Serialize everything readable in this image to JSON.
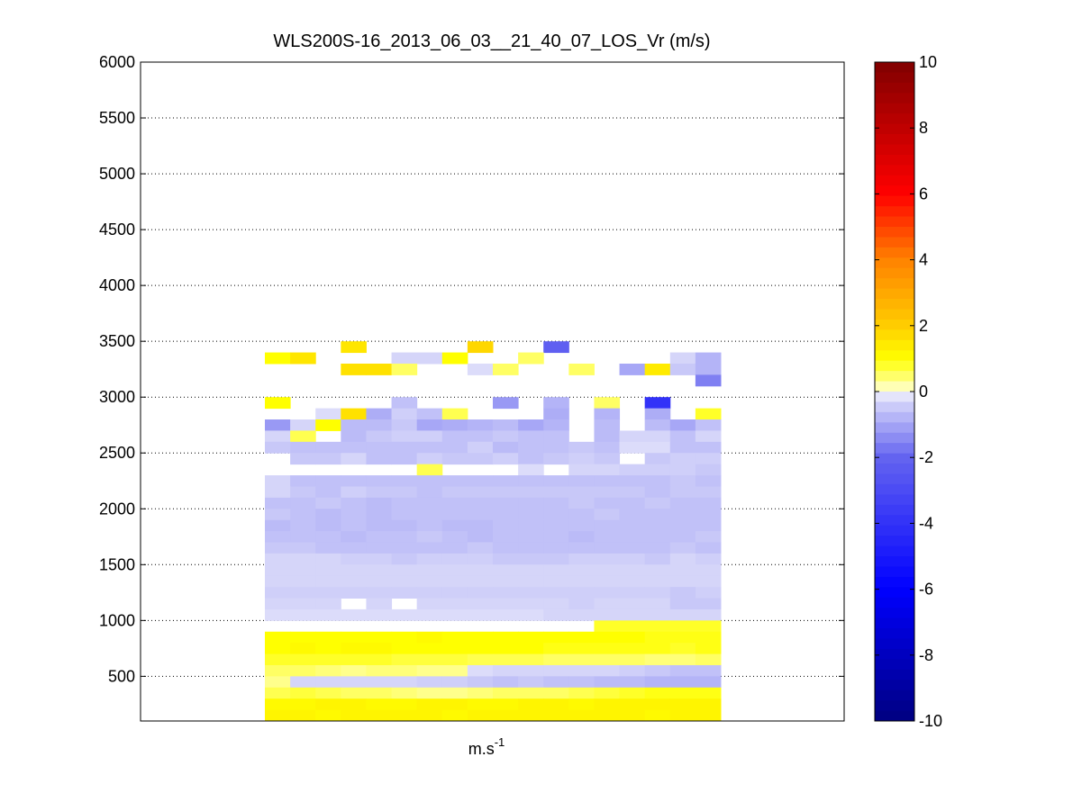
{
  "chart_data": {
    "type": "heatmap",
    "title": "WLS200S-16_2013_06_03__21_40_07_LOS_Vr (m/s)",
    "xlabel": "m.s",
    "xlabel_superscript": "-1",
    "ylabel": "",
    "ylim": [
      100,
      6000
    ],
    "yticks": [
      500,
      1000,
      1500,
      2000,
      2500,
      3000,
      3500,
      4000,
      4500,
      5000,
      5500,
      6000
    ],
    "grid": true,
    "colorbar": {
      "range": [
        -10,
        10
      ],
      "ticks": [
        -10,
        -8,
        -6,
        -4,
        -2,
        0,
        2,
        4,
        6,
        8,
        10
      ],
      "colormap": "blue-white-yellow-red",
      "position": "right"
    },
    "columns": 18,
    "rows": [
      {
        "y0": 3400,
        "y1": 3500,
        "values": [
          null,
          null,
          null,
          1.5,
          null,
          null,
          null,
          null,
          1.8,
          null,
          null,
          -2.2,
          null,
          null,
          null,
          null,
          null,
          null
        ]
      },
      {
        "y0": 3300,
        "y1": 3400,
        "values": [
          1,
          1.5,
          null,
          null,
          null,
          -0.3,
          -0.3,
          1,
          null,
          null,
          0.5,
          null,
          null,
          null,
          null,
          null,
          -0.3,
          -0.8
        ]
      },
      {
        "y0": 3200,
        "y1": 3300,
        "values": [
          null,
          null,
          null,
          1.6,
          1.6,
          0.5,
          null,
          null,
          -0.2,
          0.5,
          null,
          null,
          0.5,
          null,
          -1,
          1.4,
          -0.5,
          -0.8
        ]
      },
      {
        "y0": 3100,
        "y1": 3200,
        "values": [
          null,
          null,
          null,
          null,
          null,
          null,
          null,
          null,
          null,
          null,
          null,
          null,
          null,
          null,
          null,
          null,
          null,
          -1.6
        ]
      },
      {
        "y0": 2900,
        "y1": 3000,
        "values": [
          1,
          null,
          null,
          null,
          null,
          -0.6,
          null,
          null,
          null,
          -1.2,
          null,
          -0.8,
          null,
          0.5,
          null,
          -4,
          null,
          null
        ]
      },
      {
        "y0": 2800,
        "y1": 2900,
        "values": [
          null,
          null,
          -0.2,
          1.6,
          -0.9,
          -0.4,
          -0.6,
          0.6,
          null,
          null,
          null,
          -0.9,
          null,
          -0.8,
          null,
          -0.9,
          null,
          0.8
        ]
      },
      {
        "y0": 2700,
        "y1": 2800,
        "values": [
          -1.2,
          -0.3,
          1,
          -0.7,
          -0.7,
          -0.5,
          -1,
          -0.9,
          -0.8,
          -0.7,
          -1,
          -0.8,
          null,
          -0.7,
          null,
          -0.7,
          -1,
          -0.6
        ]
      },
      {
        "y0": 2600,
        "y1": 2700,
        "values": [
          -0.3,
          0.6,
          null,
          -0.7,
          -0.5,
          -0.4,
          -0.4,
          -0.6,
          -0.6,
          -0.5,
          -0.6,
          -0.6,
          null,
          -0.7,
          -0.3,
          -0.3,
          -0.6,
          -0.3
        ]
      },
      {
        "y0": 2500,
        "y1": 2600,
        "values": [
          -0.5,
          -0.6,
          -0.6,
          -0.6,
          -0.6,
          -0.6,
          -0.6,
          -0.6,
          -0.4,
          -0.7,
          -0.6,
          -0.6,
          -0.5,
          -0.6,
          -0.2,
          -0.2,
          -0.6,
          -0.6
        ]
      },
      {
        "y0": 2400,
        "y1": 2500,
        "values": [
          null,
          -0.5,
          -0.5,
          -0.3,
          -0.6,
          -0.6,
          -0.4,
          -0.5,
          -0.5,
          -0.4,
          -0.6,
          -0.5,
          -0.4,
          -0.5,
          null,
          -0.5,
          -0.4,
          -0.4
        ]
      },
      {
        "y0": 2300,
        "y1": 2400,
        "values": [
          null,
          null,
          null,
          null,
          null,
          null,
          0.6,
          null,
          null,
          null,
          -0.2,
          null,
          -0.3,
          -0.3,
          -0.4,
          -0.4,
          -0.4,
          -0.5
        ]
      },
      {
        "y0": 2200,
        "y1": 2300,
        "values": [
          -0.3,
          -0.6,
          -0.6,
          -0.6,
          -0.6,
          -0.6,
          -0.6,
          -0.6,
          -0.6,
          -0.6,
          -0.6,
          -0.6,
          -0.6,
          -0.6,
          -0.6,
          -0.6,
          -0.5,
          -0.6
        ]
      },
      {
        "y0": 2100,
        "y1": 2200,
        "values": [
          -0.3,
          -0.5,
          -0.6,
          -0.4,
          -0.5,
          -0.5,
          -0.6,
          -0.5,
          -0.5,
          -0.5,
          -0.5,
          -0.5,
          -0.5,
          -0.5,
          -0.5,
          -0.6,
          -0.5,
          -0.5
        ]
      },
      {
        "y0": 2000,
        "y1": 2100,
        "values": [
          -0.6,
          -0.6,
          -0.5,
          -0.6,
          -0.7,
          -0.6,
          -0.6,
          -0.6,
          -0.6,
          -0.6,
          -0.6,
          -0.6,
          -0.5,
          -0.6,
          -0.6,
          -0.5,
          -0.6,
          -0.6
        ]
      },
      {
        "y0": 1900,
        "y1": 2000,
        "values": [
          -0.5,
          -0.6,
          -0.7,
          -0.6,
          -0.7,
          -0.6,
          -0.6,
          -0.6,
          -0.6,
          -0.6,
          -0.6,
          -0.6,
          -0.6,
          -0.5,
          -0.6,
          -0.6,
          -0.6,
          -0.6
        ]
      },
      {
        "y0": 1800,
        "y1": 1900,
        "values": [
          -0.7,
          -0.6,
          -0.7,
          -0.6,
          -0.7,
          -0.7,
          -0.6,
          -0.7,
          -0.7,
          -0.6,
          -0.6,
          -0.6,
          -0.6,
          -0.6,
          -0.6,
          -0.6,
          -0.6,
          -0.6
        ]
      },
      {
        "y0": 1700,
        "y1": 1800,
        "values": [
          -0.6,
          -0.6,
          -0.6,
          -0.7,
          -0.6,
          -0.6,
          -0.5,
          -0.6,
          -0.7,
          -0.6,
          -0.6,
          -0.6,
          -0.7,
          -0.6,
          -0.6,
          -0.6,
          -0.6,
          -0.5
        ]
      },
      {
        "y0": 1600,
        "y1": 1700,
        "values": [
          -0.5,
          -0.5,
          -0.6,
          -0.6,
          -0.6,
          -0.6,
          -0.6,
          -0.6,
          -0.5,
          -0.6,
          -0.6,
          -0.6,
          -0.6,
          -0.6,
          -0.6,
          -0.6,
          -0.5,
          -0.6
        ]
      },
      {
        "y0": 1500,
        "y1": 1600,
        "values": [
          -0.3,
          -0.3,
          -0.3,
          -0.4,
          -0.4,
          -0.5,
          -0.4,
          -0.4,
          -0.4,
          -0.5,
          -0.5,
          -0.5,
          -0.4,
          -0.4,
          -0.4,
          -0.5,
          -0.3,
          -0.4
        ]
      },
      {
        "y0": 1400,
        "y1": 1500,
        "values": [
          -0.3,
          -0.3,
          -0.3,
          -0.3,
          -0.3,
          -0.3,
          -0.3,
          -0.3,
          -0.3,
          -0.3,
          -0.3,
          -0.3,
          -0.3,
          -0.3,
          -0.3,
          -0.3,
          -0.3,
          -0.3
        ]
      },
      {
        "y0": 1300,
        "y1": 1400,
        "values": [
          -0.3,
          -0.3,
          -0.3,
          -0.3,
          -0.3,
          -0.3,
          -0.3,
          -0.3,
          -0.3,
          -0.3,
          -0.3,
          -0.3,
          -0.3,
          -0.3,
          -0.3,
          -0.3,
          -0.3,
          -0.3
        ]
      },
      {
        "y0": 1200,
        "y1": 1300,
        "values": [
          -0.4,
          -0.4,
          -0.4,
          -0.4,
          -0.4,
          -0.4,
          -0.4,
          -0.4,
          -0.4,
          -0.4,
          -0.4,
          -0.4,
          -0.4,
          -0.4,
          -0.4,
          -0.4,
          -0.5,
          -0.4
        ]
      },
      {
        "y0": 1100,
        "y1": 1200,
        "values": [
          -0.3,
          -0.3,
          -0.3,
          null,
          -0.3,
          null,
          -0.3,
          -0.3,
          -0.3,
          -0.3,
          -0.3,
          -0.3,
          -0.4,
          -0.3,
          -0.3,
          -0.3,
          -0.5,
          -0.5
        ]
      },
      {
        "y0": 1000,
        "y1": 1100,
        "values": [
          -0.2,
          -0.2,
          -0.2,
          -0.2,
          -0.2,
          -0.2,
          -0.2,
          -0.2,
          -0.2,
          -0.2,
          -0.2,
          -0.3,
          -0.3,
          -0.3,
          -0.3,
          -0.3,
          -0.3,
          -0.3
        ]
      },
      {
        "y0": 900,
        "y1": 1000,
        "values": [
          null,
          null,
          null,
          null,
          null,
          null,
          null,
          null,
          null,
          null,
          null,
          null,
          null,
          0.8,
          0.8,
          0.8,
          0.8,
          0.8
        ]
      },
      {
        "y0": 800,
        "y1": 900,
        "values": [
          1.0,
          1.0,
          1.0,
          1.0,
          1.0,
          1.0,
          1.1,
          1.0,
          1.0,
          1.0,
          1.0,
          1.0,
          1.0,
          1.0,
          1.0,
          0.9,
          0.9,
          0.9
        ]
      },
      {
        "y0": 700,
        "y1": 800,
        "values": [
          1.0,
          1.1,
          1.0,
          1.1,
          1.1,
          1.0,
          1.0,
          1.0,
          1.0,
          1.0,
          1.0,
          0.9,
          0.9,
          0.9,
          0.9,
          0.9,
          0.8,
          0.9
        ]
      },
      {
        "y0": 600,
        "y1": 700,
        "values": [
          0.8,
          0.8,
          0.8,
          0.8,
          0.8,
          0.7,
          0.7,
          0.7,
          0.6,
          0.6,
          0.6,
          0.5,
          0.5,
          0.5,
          0.5,
          0.4,
          0.4,
          0.5
        ]
      },
      {
        "y0": 500,
        "y1": 600,
        "values": [
          0.5,
          0.5,
          0.4,
          0.3,
          0.4,
          0.4,
          0.3,
          0.3,
          -0.2,
          -0.3,
          -0.3,
          -0.3,
          -0.3,
          -0.3,
          -0.4,
          -0.5,
          -0.6,
          -0.6
        ]
      },
      {
        "y0": 400,
        "y1": 500,
        "values": [
          0.3,
          -0.3,
          -0.3,
          -0.3,
          -0.3,
          -0.3,
          -0.4,
          -0.4,
          -0.5,
          -0.6,
          -0.5,
          -0.6,
          -0.6,
          -0.7,
          -0.7,
          -0.8,
          -0.8,
          -0.8
        ]
      },
      {
        "y0": 300,
        "y1": 400,
        "values": [
          0.6,
          0.7,
          0.6,
          0.5,
          0.5,
          0.4,
          0.3,
          0.3,
          0.4,
          0.5,
          0.5,
          0.5,
          0.6,
          0.7,
          0.8,
          0.9,
          0.9,
          0.9
        ]
      },
      {
        "y0": 200,
        "y1": 300,
        "values": [
          1.1,
          1.1,
          1.2,
          1.2,
          1.1,
          1.1,
          1.2,
          1.2,
          1.1,
          1.1,
          1.2,
          1.2,
          1.1,
          1.2,
          1.2,
          1.2,
          1.2,
          1.2
        ]
      },
      {
        "y0": 100,
        "y1": 200,
        "values": [
          1.2,
          1.2,
          1.1,
          1.2,
          1.2,
          1.2,
          1.2,
          1.1,
          1.2,
          1.2,
          1.2,
          1.2,
          1.2,
          1.2,
          1.2,
          1.1,
          1.2,
          1.2
        ]
      }
    ]
  }
}
